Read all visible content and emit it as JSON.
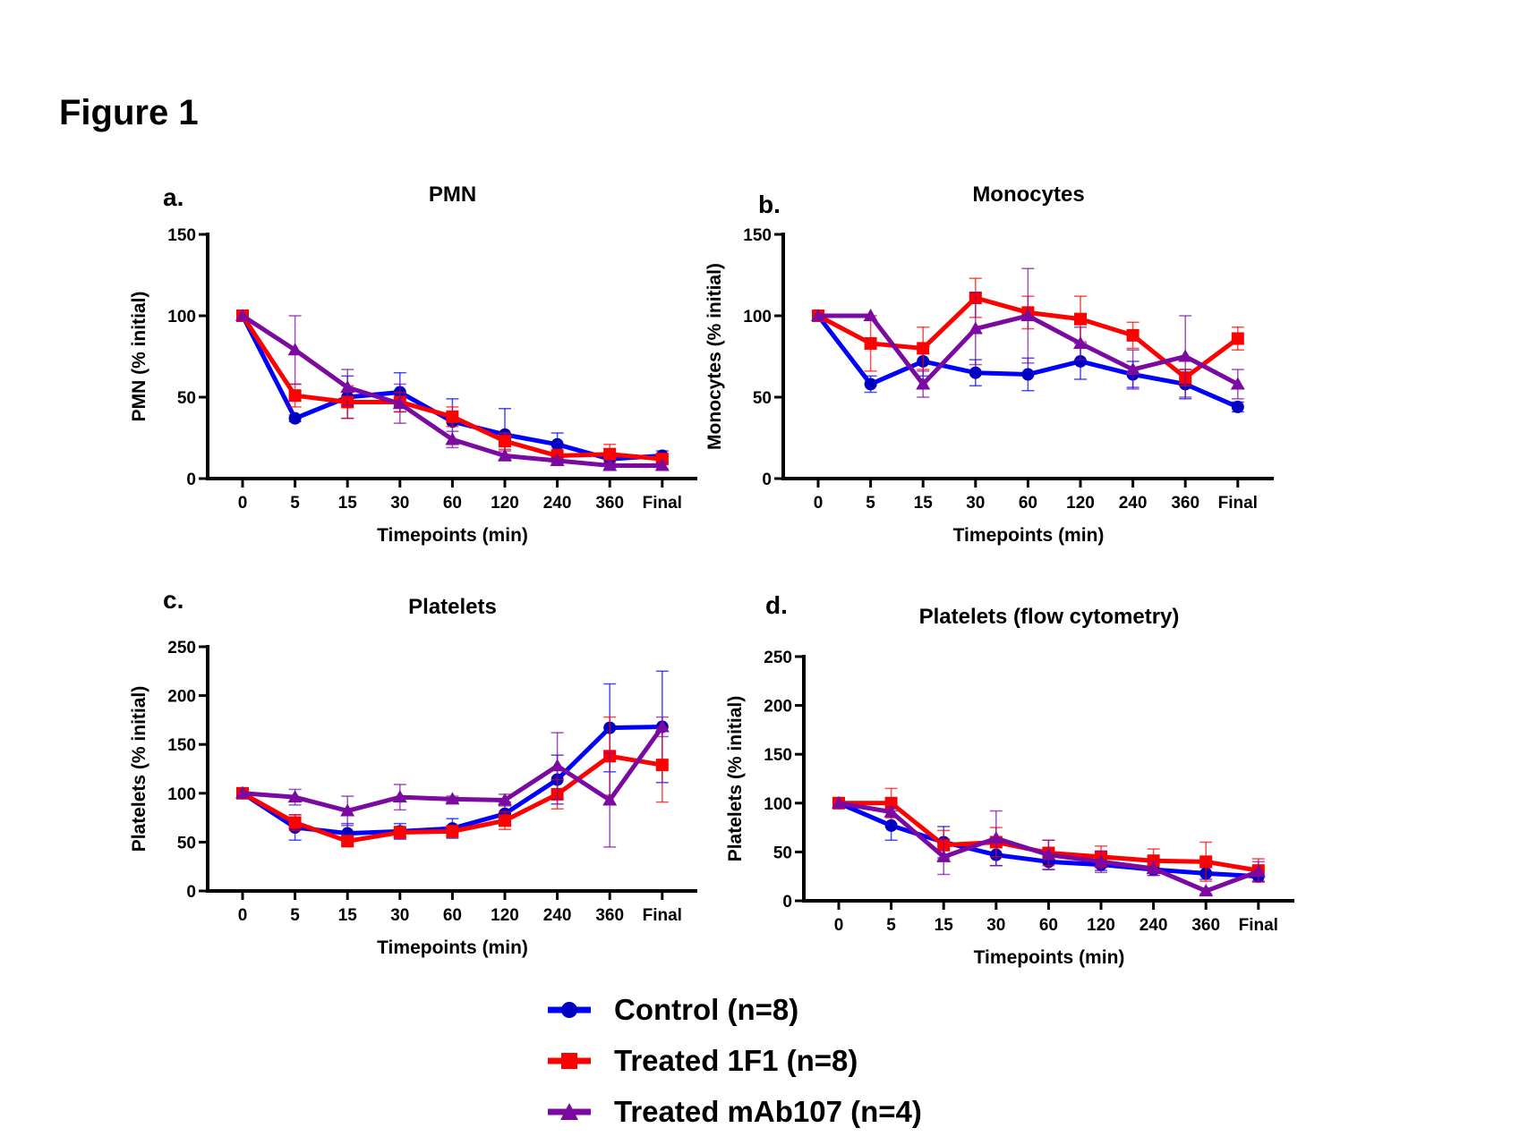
{
  "figure_title": "Figure 1",
  "legend": [
    {
      "label": "Control (n=8)",
      "color": "#0000ff",
      "marker_color": "#0000c0",
      "marker": "circle"
    },
    {
      "label": "Treated 1F1 (n=8)",
      "color": "#ff0000",
      "marker_color": "#ff0000",
      "marker": "square"
    },
    {
      "label": "Treated mAb107 (n=4)",
      "color": "#7a0aa0",
      "marker_color": "#7a0aa0",
      "marker": "triangle"
    }
  ],
  "chart_data": [
    {
      "panel": "a.",
      "type": "line",
      "title": "PMN",
      "xlabel": "Timepoints (min)",
      "ylabel": "PMN (% initial)",
      "categories": [
        "0",
        "5",
        "15",
        "30",
        "60",
        "120",
        "240",
        "360",
        "Final"
      ],
      "ylim": [
        0,
        150
      ],
      "yticks": [
        0,
        50,
        100,
        150
      ],
      "grid": false,
      "series": [
        {
          "name": "Control (n=8)",
          "values": [
            100,
            37,
            50,
            53,
            35,
            27,
            21,
            12,
            14
          ],
          "err": [
            0,
            2,
            13,
            12,
            14,
            16,
            7,
            3,
            3
          ]
        },
        {
          "name": "Treated 1F1 (n=8)",
          "values": [
            100,
            51,
            47,
            47,
            38,
            23,
            14,
            15,
            12
          ],
          "err": [
            0,
            7,
            10,
            6,
            6,
            5,
            4,
            6,
            2
          ]
        },
        {
          "name": "Treated mAb107 (n=4)",
          "values": [
            100,
            79,
            56,
            46,
            24,
            14,
            11,
            8,
            8
          ],
          "err": [
            0,
            21,
            11,
            12,
            5,
            3,
            2,
            2,
            2
          ]
        }
      ]
    },
    {
      "panel": "b.",
      "type": "line",
      "title": "Monocytes",
      "xlabel": "Timepoints (min)",
      "ylabel": "Monocytes (% initial)",
      "categories": [
        "0",
        "5",
        "15",
        "30",
        "60",
        "120",
        "240",
        "360",
        "Final"
      ],
      "ylim": [
        0,
        150
      ],
      "yticks": [
        0,
        50,
        100,
        150
      ],
      "grid": false,
      "series": [
        {
          "name": "Control (n=8)",
          "values": [
            100,
            58,
            72,
            65,
            64,
            72,
            64,
            58,
            44
          ],
          "err": [
            0,
            5,
            9,
            8,
            10,
            11,
            8,
            9,
            3
          ]
        },
        {
          "name": "Treated 1F1 (n=8)",
          "values": [
            100,
            83,
            80,
            111,
            102,
            98,
            88,
            62,
            86
          ],
          "err": [
            0,
            17,
            13,
            12,
            10,
            14,
            8,
            5,
            7
          ]
        },
        {
          "name": "Treated mAb107 (n=4)",
          "values": [
            100,
            100,
            58,
            92,
            100,
            83,
            67,
            75,
            58
          ],
          "err": [
            0,
            0,
            8,
            22,
            29,
            10,
            12,
            25,
            9
          ]
        }
      ]
    },
    {
      "panel": "c.",
      "type": "line",
      "title": "Platelets",
      "xlabel": "Timepoints (min)",
      "ylabel": "Platelets (% initial)",
      "categories": [
        "0",
        "5",
        "15",
        "30",
        "60",
        "120",
        "240",
        "360",
        "Final"
      ],
      "ylim": [
        0,
        250
      ],
      "yticks": [
        0,
        50,
        100,
        150,
        200,
        250
      ],
      "grid": false,
      "series": [
        {
          "name": "Control (n=8)",
          "values": [
            100,
            65,
            59,
            61,
            64,
            79,
            114,
            167,
            168
          ],
          "err": [
            0,
            13,
            10,
            8,
            10,
            12,
            25,
            45,
            57
          ]
        },
        {
          "name": "Treated 1F1 (n=8)",
          "values": [
            100,
            70,
            51,
            60,
            61,
            72,
            99,
            138,
            129
          ],
          "err": [
            0,
            8,
            5,
            6,
            6,
            9,
            15,
            40,
            38
          ]
        },
        {
          "name": "Treated mAb107 (n=4)",
          "values": [
            100,
            96,
            82,
            96,
            94,
            93,
            128,
            93,
            168
          ],
          "err": [
            0,
            8,
            15,
            13,
            3,
            6,
            34,
            48,
            10
          ]
        }
      ]
    },
    {
      "panel": "d.",
      "type": "line",
      "title": "Platelets (flow cytometry)",
      "xlabel": "Timepoints (min)",
      "ylabel": "Platelets (% initial)",
      "categories": [
        "0",
        "5",
        "15",
        "30",
        "60",
        "120",
        "240",
        "360",
        "Final"
      ],
      "ylim": [
        0,
        250
      ],
      "yticks": [
        0,
        50,
        100,
        150,
        200,
        250
      ],
      "grid": false,
      "series": [
        {
          "name": "Control (n=8)",
          "values": [
            100,
            77,
            60,
            47,
            40,
            37,
            32,
            28,
            25
          ],
          "err": [
            0,
            15,
            16,
            11,
            8,
            6,
            6,
            6,
            5
          ]
        },
        {
          "name": "Treated 1F1 (n=8)",
          "values": [
            100,
            100,
            57,
            60,
            49,
            45,
            41,
            40,
            31
          ],
          "err": [
            0,
            15,
            15,
            15,
            13,
            11,
            12,
            20,
            12
          ]
        },
        {
          "name": "Treated mAb107 (n=4)",
          "values": [
            100,
            91,
            45,
            64,
            47,
            40,
            33,
            10,
            30
          ],
          "err": [
            0,
            5,
            18,
            28,
            15,
            11,
            7,
            3,
            10
          ]
        }
      ]
    }
  ]
}
